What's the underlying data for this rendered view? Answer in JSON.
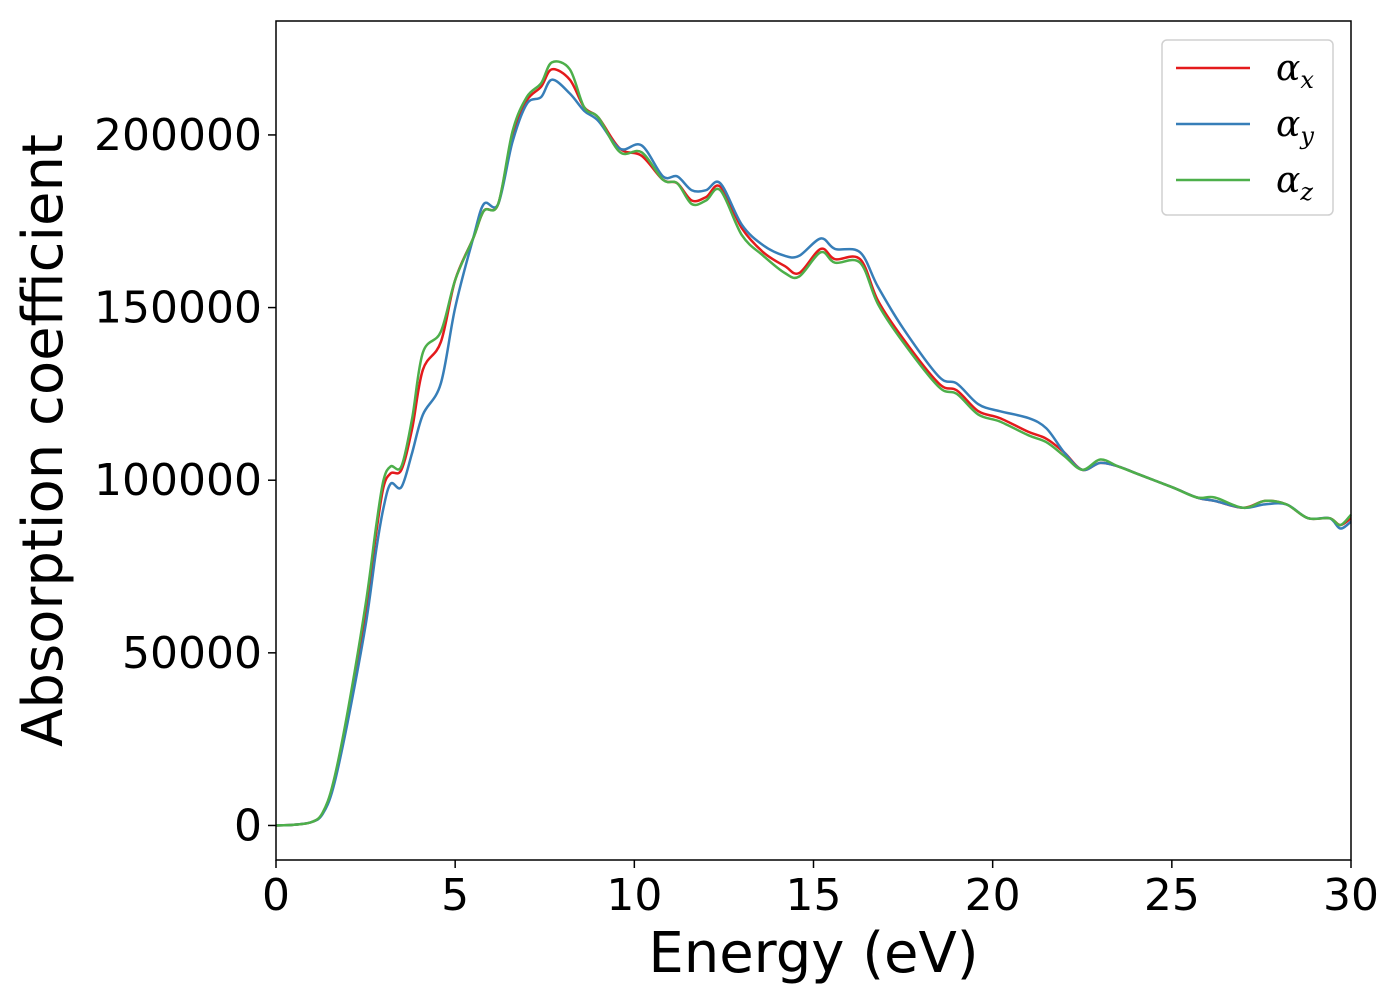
{
  "chart_data": {
    "type": "line",
    "title": "",
    "xlabel": "Energy (eV)",
    "ylabel": "Absorption coefficient",
    "xlim": [
      0,
      30
    ],
    "ylim": [
      -10000,
      233000
    ],
    "xticks": [
      "0",
      "5",
      "10",
      "15",
      "20",
      "25",
      "30"
    ],
    "yticks": [
      "0",
      "50000",
      "100000",
      "150000",
      "200000"
    ],
    "xtick_values": [
      0,
      5,
      10,
      15,
      20,
      25,
      30
    ],
    "ytick_values": [
      0,
      50000,
      100000,
      150000,
      200000
    ],
    "grid": false,
    "legend_position": "top-right",
    "series": [
      {
        "name": "α",
        "subscript": "x",
        "color": "#e41a1c",
        "points": [
          [
            0,
            0
          ],
          [
            0.5,
            200
          ],
          [
            1.0,
            1000
          ],
          [
            1.3,
            3500
          ],
          [
            1.6,
            12000
          ],
          [
            2.0,
            32000
          ],
          [
            2.5,
            62000
          ],
          [
            2.8,
            85000
          ],
          [
            3.0,
            98000
          ],
          [
            3.2,
            102000
          ],
          [
            3.5,
            103000
          ],
          [
            3.8,
            115000
          ],
          [
            4.1,
            132000
          ],
          [
            4.6,
            140000
          ],
          [
            5.0,
            158000
          ],
          [
            5.5,
            170000
          ],
          [
            5.8,
            178000
          ],
          [
            6.2,
            180000
          ],
          [
            6.6,
            200000
          ],
          [
            7.0,
            210000
          ],
          [
            7.4,
            214000
          ],
          [
            7.7,
            219000
          ],
          [
            8.2,
            216000
          ],
          [
            8.6,
            208000
          ],
          [
            9.0,
            205000
          ],
          [
            9.6,
            196000
          ],
          [
            10.2,
            194000
          ],
          [
            10.8,
            187000
          ],
          [
            11.2,
            186000
          ],
          [
            11.6,
            181000
          ],
          [
            12.0,
            182000
          ],
          [
            12.4,
            185000
          ],
          [
            13.0,
            173000
          ],
          [
            13.6,
            166000
          ],
          [
            14.2,
            162000
          ],
          [
            14.6,
            160000
          ],
          [
            15.2,
            167000
          ],
          [
            15.6,
            164000
          ],
          [
            16.3,
            164000
          ],
          [
            16.8,
            152000
          ],
          [
            17.5,
            141000
          ],
          [
            18.5,
            128000
          ],
          [
            19.0,
            126000
          ],
          [
            19.6,
            120000
          ],
          [
            20.2,
            118000
          ],
          [
            21.0,
            114000
          ],
          [
            21.5,
            112000
          ],
          [
            22.0,
            108000
          ],
          [
            22.5,
            103000
          ],
          [
            23.0,
            105000
          ],
          [
            23.5,
            104000
          ],
          [
            24.0,
            102000
          ],
          [
            25.0,
            98000
          ],
          [
            25.7,
            95000
          ],
          [
            26.2,
            94000
          ],
          [
            27.0,
            92000
          ],
          [
            27.6,
            94000
          ],
          [
            28.2,
            93000
          ],
          [
            28.8,
            89000
          ],
          [
            29.4,
            89000
          ],
          [
            29.7,
            87000
          ],
          [
            30.0,
            89000
          ]
        ]
      },
      {
        "name": "α",
        "subscript": "y",
        "color": "#377eb8",
        "points": [
          [
            0,
            0
          ],
          [
            0.5,
            200
          ],
          [
            1.0,
            1000
          ],
          [
            1.3,
            3300
          ],
          [
            1.6,
            11000
          ],
          [
            2.0,
            30000
          ],
          [
            2.5,
            58000
          ],
          [
            2.8,
            80000
          ],
          [
            3.0,
            92000
          ],
          [
            3.2,
            99000
          ],
          [
            3.5,
            98000
          ],
          [
            3.8,
            108000
          ],
          [
            4.1,
            119000
          ],
          [
            4.6,
            128000
          ],
          [
            5.0,
            150000
          ],
          [
            5.5,
            170000
          ],
          [
            5.8,
            180000
          ],
          [
            6.2,
            180000
          ],
          [
            6.6,
            198000
          ],
          [
            7.0,
            209000
          ],
          [
            7.4,
            211000
          ],
          [
            7.7,
            216000
          ],
          [
            8.2,
            212000
          ],
          [
            8.6,
            207000
          ],
          [
            9.0,
            204000
          ],
          [
            9.6,
            196000
          ],
          [
            10.2,
            197000
          ],
          [
            10.8,
            188000
          ],
          [
            11.2,
            188000
          ],
          [
            11.6,
            184000
          ],
          [
            12.0,
            184000
          ],
          [
            12.4,
            186000
          ],
          [
            13.0,
            174000
          ],
          [
            13.6,
            168000
          ],
          [
            14.2,
            165000
          ],
          [
            14.6,
            165000
          ],
          [
            15.2,
            170000
          ],
          [
            15.6,
            167000
          ],
          [
            16.3,
            166000
          ],
          [
            16.8,
            156000
          ],
          [
            17.5,
            144000
          ],
          [
            18.5,
            130000
          ],
          [
            19.0,
            128000
          ],
          [
            19.6,
            122000
          ],
          [
            20.2,
            120000
          ],
          [
            21.0,
            118000
          ],
          [
            21.5,
            115000
          ],
          [
            22.0,
            108000
          ],
          [
            22.5,
            103000
          ],
          [
            23.0,
            105000
          ],
          [
            23.5,
            104000
          ],
          [
            24.0,
            102000
          ],
          [
            25.0,
            98000
          ],
          [
            25.7,
            95000
          ],
          [
            26.2,
            94000
          ],
          [
            27.0,
            92000
          ],
          [
            27.6,
            93000
          ],
          [
            28.2,
            93000
          ],
          [
            28.8,
            89000
          ],
          [
            29.4,
            89000
          ],
          [
            29.7,
            86000
          ],
          [
            30.0,
            88000
          ]
        ]
      },
      {
        "name": "α",
        "subscript": "z",
        "color": "#4daf4a",
        "points": [
          [
            0,
            0
          ],
          [
            0.5,
            200
          ],
          [
            1.0,
            1000
          ],
          [
            1.3,
            3700
          ],
          [
            1.6,
            12500
          ],
          [
            2.0,
            33000
          ],
          [
            2.5,
            64000
          ],
          [
            2.8,
            87000
          ],
          [
            3.0,
            100000
          ],
          [
            3.2,
            104000
          ],
          [
            3.5,
            104000
          ],
          [
            3.8,
            118000
          ],
          [
            4.1,
            137000
          ],
          [
            4.6,
            143000
          ],
          [
            5.0,
            158000
          ],
          [
            5.5,
            170000
          ],
          [
            5.8,
            178000
          ],
          [
            6.2,
            180000
          ],
          [
            6.6,
            201000
          ],
          [
            7.0,
            211000
          ],
          [
            7.4,
            215000
          ],
          [
            7.7,
            221000
          ],
          [
            8.2,
            219000
          ],
          [
            8.6,
            208000
          ],
          [
            9.0,
            205000
          ],
          [
            9.6,
            195000
          ],
          [
            10.2,
            195000
          ],
          [
            10.8,
            187000
          ],
          [
            11.2,
            186000
          ],
          [
            11.6,
            180000
          ],
          [
            12.0,
            181000
          ],
          [
            12.4,
            184000
          ],
          [
            13.0,
            171000
          ],
          [
            13.6,
            165000
          ],
          [
            14.2,
            160000
          ],
          [
            14.6,
            159000
          ],
          [
            15.2,
            166000
          ],
          [
            15.6,
            163000
          ],
          [
            16.3,
            163000
          ],
          [
            16.8,
            151000
          ],
          [
            17.5,
            140000
          ],
          [
            18.5,
            127000
          ],
          [
            19.0,
            125000
          ],
          [
            19.6,
            119000
          ],
          [
            20.2,
            117000
          ],
          [
            21.0,
            113000
          ],
          [
            21.5,
            111000
          ],
          [
            22.0,
            107000
          ],
          [
            22.5,
            103000
          ],
          [
            23.0,
            106000
          ],
          [
            23.5,
            104000
          ],
          [
            24.0,
            102000
          ],
          [
            25.0,
            98000
          ],
          [
            25.7,
            95000
          ],
          [
            26.2,
            95000
          ],
          [
            27.0,
            92000
          ],
          [
            27.6,
            94000
          ],
          [
            28.2,
            93000
          ],
          [
            28.8,
            89000
          ],
          [
            29.4,
            89000
          ],
          [
            29.7,
            87000
          ],
          [
            30.0,
            90000
          ]
        ]
      }
    ]
  }
}
